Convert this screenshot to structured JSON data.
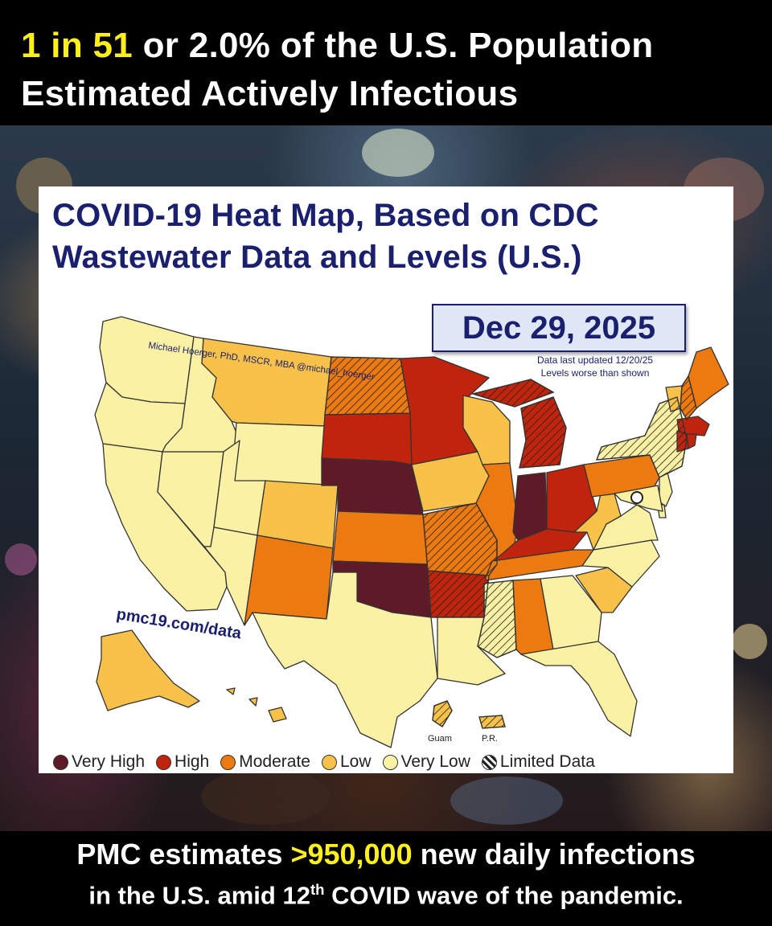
{
  "headline": {
    "highlight": "1 in 51",
    "rest_line1": " or 2.0% of the U.S. Population",
    "line2": "Estimated Actively Infectious"
  },
  "card": {
    "title_line1": "COVID-19 Heat Map, Based on CDC",
    "title_line2": "Wastewater Data and Levels (U.S.)",
    "date": "Dec 29, 2025",
    "credit": "Michael Hoerger, PhD, MSCR, MBA  @michael_hoerger",
    "note_line1": "Data last updated 12/20/25",
    "note_line2": "Levels worse than shown",
    "url": "pmc19.com/data",
    "guam_label": "Guam",
    "pr_label": "P.R."
  },
  "legend": {
    "items": [
      {
        "label": "Very High",
        "color": "#5e1a27"
      },
      {
        "label": "High",
        "color": "#c1240d"
      },
      {
        "label": "Moderate",
        "color": "#ed7a10"
      },
      {
        "label": "Low",
        "color": "#f7c14a"
      },
      {
        "label": "Very Low",
        "color": "#fbf1a4"
      },
      {
        "label": "Limited Data",
        "color": "hatched"
      }
    ]
  },
  "level_colors": {
    "very_high": "#5e1a27",
    "high": "#c1240d",
    "moderate": "#ed7a10",
    "low": "#f7c14a",
    "very_low": "#fbf1a4"
  },
  "state_levels": {
    "WA": "very_low",
    "OR": "very_low",
    "CA": "very_low",
    "NV": "very_low",
    "ID": "very_low",
    "MT": "low",
    "WY": "very_low",
    "UT": "very_low",
    "AZ": "very_low",
    "CO": "low",
    "NM": "moderate",
    "ND": "moderate_limited",
    "SD": "high",
    "NE": "very_high",
    "KS": "moderate",
    "OK": "very_high",
    "TX": "very_low",
    "MN": "high",
    "IA": "low",
    "MO": "moderate_limited",
    "AR": "high_limited",
    "LA": "very_low",
    "WI": "low",
    "IL": "moderate",
    "MI": "high_limited",
    "IN": "very_high",
    "OH": "high",
    "KY": "high",
    "TN": "moderate",
    "MS": "very_low_limited",
    "AL": "moderate",
    "GA": "very_low",
    "FL": "very_low",
    "SC": "low",
    "NC": "very_low",
    "VA": "very_low",
    "WV": "low",
    "PA": "moderate",
    "NY": "very_low_limited",
    "VT": "low",
    "NH": "moderate_limited",
    "ME": "moderate",
    "MA": "high",
    "CT": "high",
    "RI": "high",
    "NJ": "very_low",
    "DE": "very_low",
    "MD": "very_low",
    "AK": "low",
    "HI": "low",
    "GU": "low_limited",
    "PR": "low_limited"
  },
  "footer": {
    "prefix": "PMC estimates ",
    "highlight": ">950,000",
    "suffix": " new daily infections",
    "line2_pre": "in the U.S. amid 12",
    "line2_sup": "th",
    "line2_post": " COVID wave of the pandemic."
  }
}
